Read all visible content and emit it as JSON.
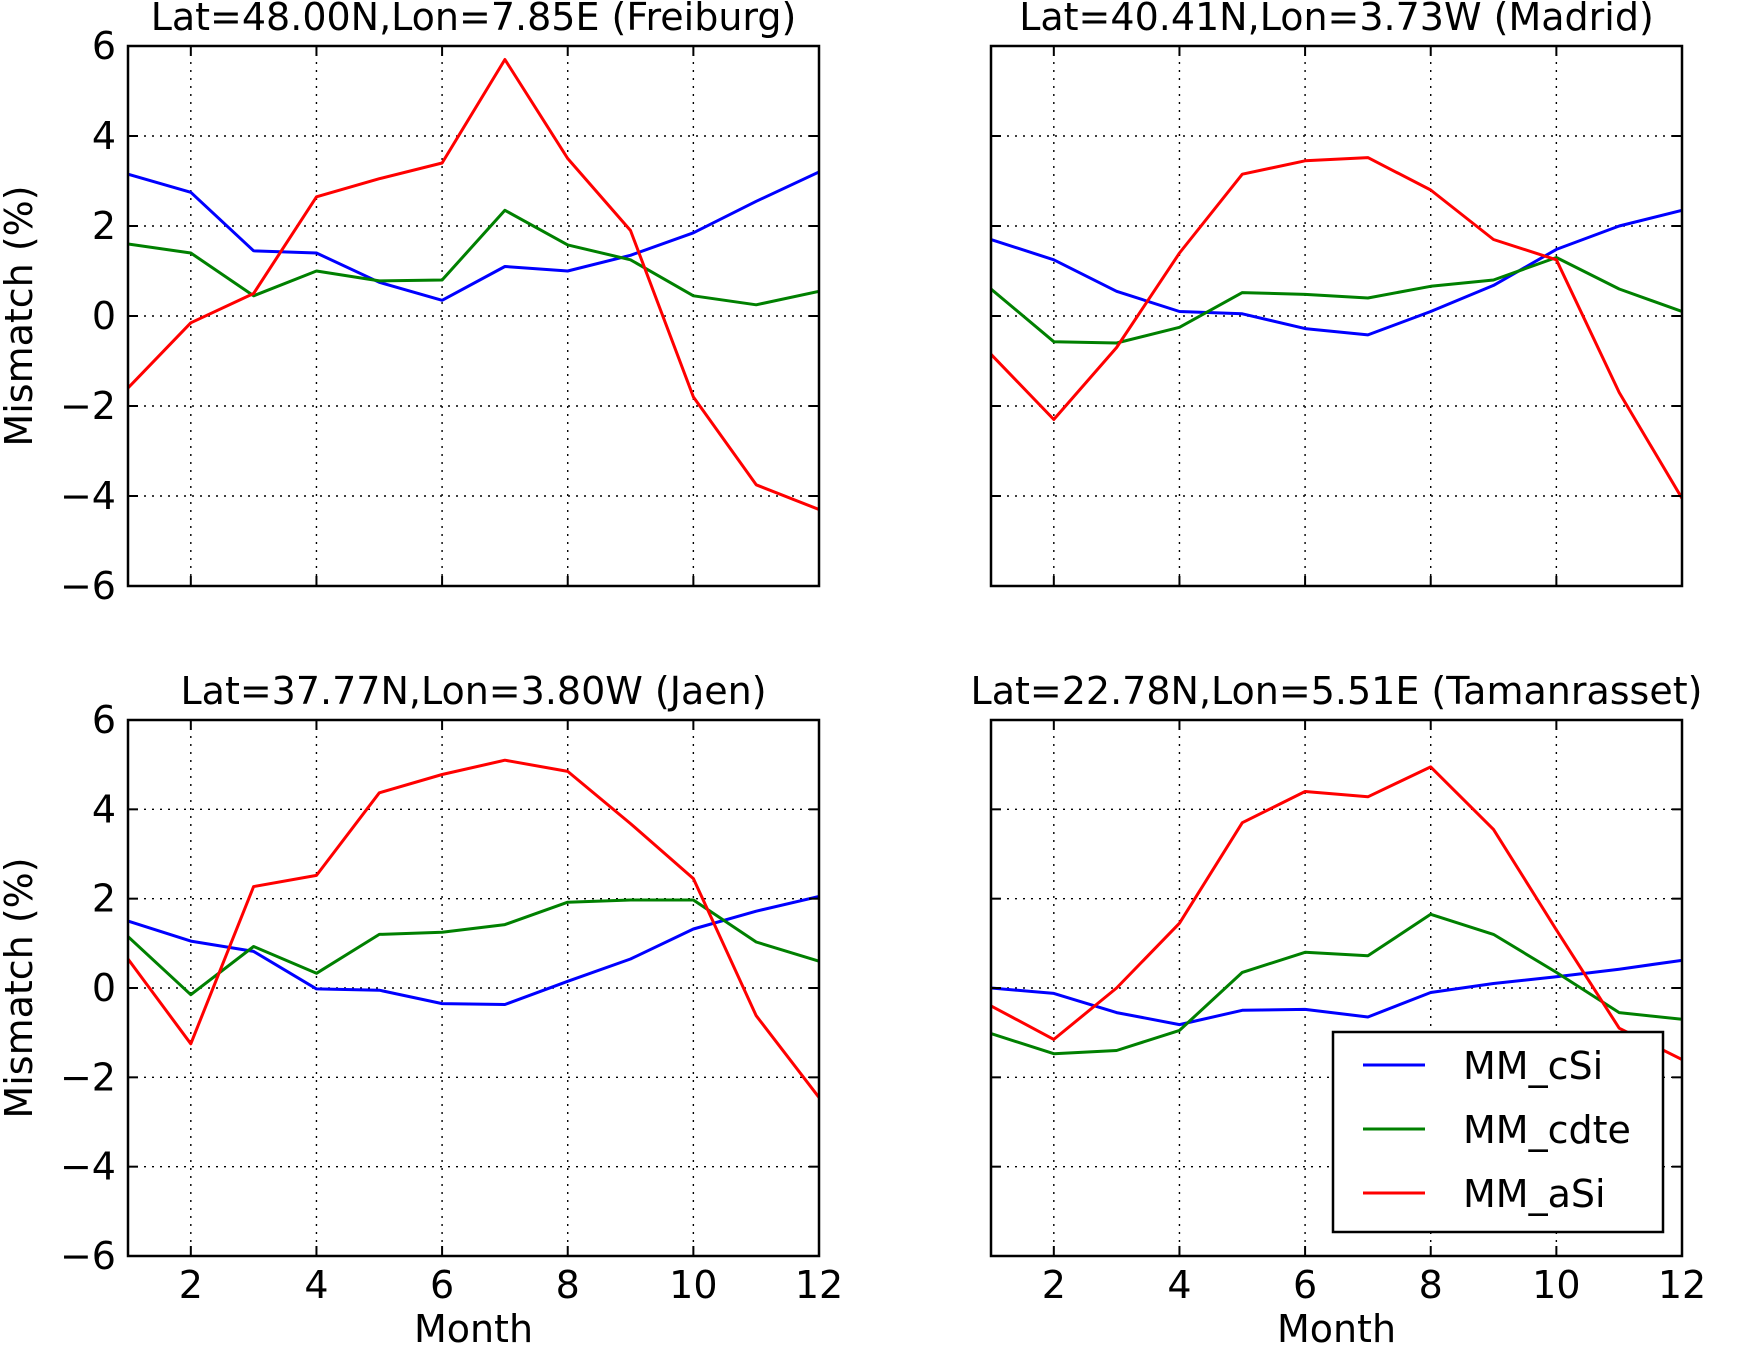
{
  "chart_data": [
    {
      "type": "line",
      "title": "Lat=48.00N,Lon=7.85E (Freiburg)",
      "xlabel": "",
      "ylabel": "Mismatch   (%)",
      "xlim": [
        1,
        12
      ],
      "ylim": [
        -6,
        6
      ],
      "x": [
        1,
        2,
        3,
        4,
        5,
        6,
        7,
        8,
        9,
        10,
        11,
        12
      ],
      "grid": true,
      "series": [
        {
          "name": "MM_cSi",
          "color": "#0000ff",
          "values": [
            3.15,
            2.75,
            1.45,
            1.4,
            0.75,
            0.35,
            1.1,
            1.0,
            1.35,
            1.85,
            2.55,
            3.2
          ]
        },
        {
          "name": "MM_cdte",
          "color": "#008000",
          "values": [
            1.6,
            1.4,
            0.45,
            1.0,
            0.78,
            0.8,
            2.35,
            1.58,
            1.25,
            0.45,
            0.25,
            0.55
          ]
        },
        {
          "name": "MM_aSi",
          "color": "#ff0000",
          "values": [
            -1.6,
            -0.15,
            0.5,
            2.65,
            3.05,
            3.4,
            5.7,
            3.5,
            1.9,
            -1.8,
            -3.75,
            -4.3
          ]
        }
      ]
    },
    {
      "type": "line",
      "title": "Lat=40.41N,Lon=3.73W (Madrid)",
      "xlabel": "",
      "ylabel": "",
      "xlim": [
        1,
        12
      ],
      "ylim": [
        -6,
        6
      ],
      "x": [
        1,
        2,
        3,
        4,
        5,
        6,
        7,
        8,
        9,
        10,
        11,
        12
      ],
      "grid": true,
      "series": [
        {
          "name": "MM_cSi",
          "color": "#0000ff",
          "values": [
            1.7,
            1.25,
            0.55,
            0.1,
            0.05,
            -0.28,
            -0.42,
            0.1,
            0.68,
            1.48,
            2.0,
            2.35
          ]
        },
        {
          "name": "MM_cdte",
          "color": "#008000",
          "values": [
            0.6,
            -0.57,
            -0.6,
            -0.25,
            0.52,
            0.48,
            0.4,
            0.66,
            0.8,
            1.3,
            0.6,
            0.1
          ]
        },
        {
          "name": "MM_aSi",
          "color": "#ff0000",
          "values": [
            -0.85,
            -2.3,
            -0.7,
            1.4,
            3.15,
            3.45,
            3.52,
            2.8,
            1.7,
            1.25,
            -1.7,
            -4.05
          ]
        }
      ]
    },
    {
      "type": "line",
      "title": "Lat=37.77N,Lon=3.80W (Jaen)",
      "xlabel": "Month",
      "ylabel": "Mismatch   (%)",
      "xlim": [
        1,
        12
      ],
      "ylim": [
        -6,
        6
      ],
      "x": [
        1,
        2,
        3,
        4,
        5,
        6,
        7,
        8,
        9,
        10,
        11,
        12
      ],
      "grid": true,
      "series": [
        {
          "name": "MM_cSi",
          "color": "#0000ff",
          "values": [
            1.5,
            1.05,
            0.82,
            -0.02,
            -0.05,
            -0.35,
            -0.37,
            0.15,
            0.65,
            1.32,
            1.72,
            2.05
          ]
        },
        {
          "name": "MM_cdte",
          "color": "#008000",
          "values": [
            1.15,
            -0.15,
            0.93,
            0.33,
            1.2,
            1.25,
            1.42,
            1.92,
            1.97,
            1.97,
            1.03,
            0.6
          ]
        },
        {
          "name": "MM_aSi",
          "color": "#ff0000",
          "values": [
            0.65,
            -1.25,
            2.27,
            2.52,
            4.37,
            4.78,
            5.1,
            4.85,
            3.68,
            2.45,
            -0.62,
            -2.45
          ]
        }
      ]
    },
    {
      "type": "line",
      "title": "Lat=22.78N,Lon=5.51E (Tamanrasset)",
      "xlabel": "Month",
      "ylabel": "",
      "xlim": [
        1,
        12
      ],
      "ylim": [
        -6,
        6
      ],
      "x": [
        1,
        2,
        3,
        4,
        5,
        6,
        7,
        8,
        9,
        10,
        11,
        12
      ],
      "grid": true,
      "legend": "lower-right",
      "series": [
        {
          "name": "MM_cSi",
          "color": "#0000ff",
          "values": [
            0.0,
            -0.12,
            -0.55,
            -0.82,
            -0.5,
            -0.48,
            -0.65,
            -0.1,
            0.1,
            0.25,
            0.42,
            0.62
          ]
        },
        {
          "name": "MM_cdte",
          "color": "#008000",
          "values": [
            -1.02,
            -1.47,
            -1.4,
            -0.95,
            0.35,
            0.8,
            0.72,
            1.65,
            1.2,
            0.35,
            -0.55,
            -0.7
          ]
        },
        {
          "name": "MM_aSi",
          "color": "#ff0000",
          "values": [
            -0.4,
            -1.15,
            0.0,
            1.45,
            3.7,
            4.4,
            4.28,
            4.95,
            3.55,
            1.3,
            -0.9,
            -1.6
          ]
        }
      ]
    }
  ],
  "axis_ticks": {
    "x": [
      "2",
      "4",
      "6",
      "8",
      "10",
      "12"
    ],
    "x_values": [
      2,
      4,
      6,
      8,
      10,
      12
    ],
    "y": [
      "6",
      "4",
      "2",
      "0",
      "−2",
      "−4",
      "−6"
    ],
    "y_values": [
      6,
      4,
      2,
      0,
      -2,
      -4,
      -6
    ]
  },
  "legend": {
    "entries": [
      "MM_cSi",
      "MM_cdte",
      "MM_aSi"
    ]
  }
}
